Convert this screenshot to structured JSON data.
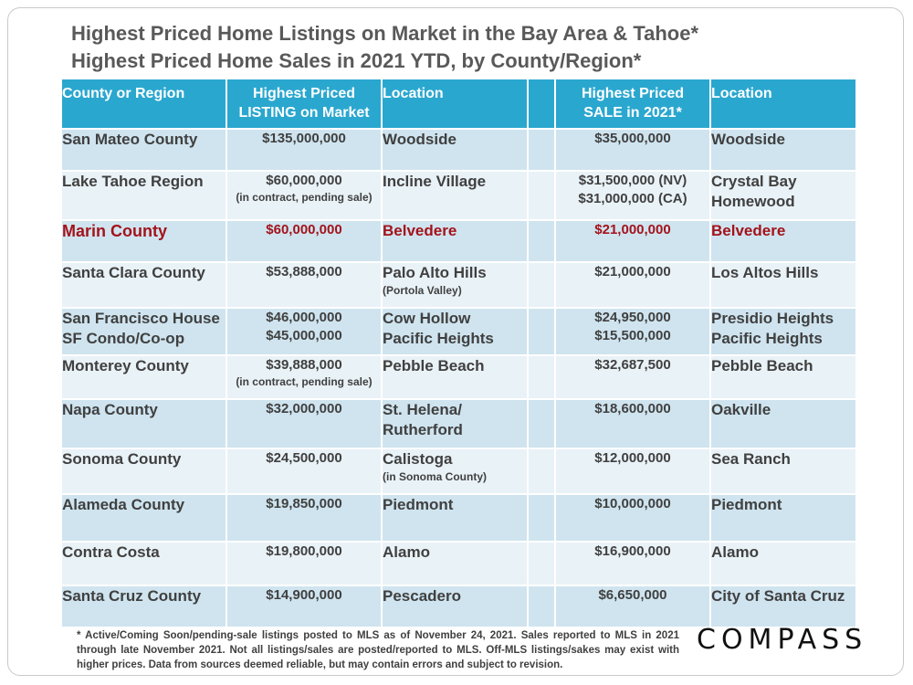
{
  "title_line1": "Highest Priced Home Listings on Market in the Bay Area & Tahoe*",
  "title_line2": "Highest Priced Home Sales in 2021 YTD, by County/Region*",
  "headers": {
    "region": "County or Region",
    "listing_1": "Highest Priced",
    "listing_2": "LISTING on Market",
    "location1": "Location",
    "blank": "",
    "sale_1": "Highest Priced",
    "sale_2": "SALE in 2021*",
    "location2": "Location"
  },
  "rows": [
    {
      "name1": "San Mateo County",
      "name2": "",
      "listing1": "$135,000,000",
      "listing2": "",
      "listing_note": "",
      "loc1": "Woodside",
      "loc1b": "",
      "loc1_note": "",
      "sale1": "$35,000,000",
      "sale2": "",
      "loc2": "Woodside",
      "loc2b": ""
    },
    {
      "name1": "Lake Tahoe Region",
      "name2": "",
      "listing1": "$60,000,000",
      "listing2": "",
      "listing_note": "(in contract, pending sale)",
      "loc1": "Incline Village",
      "loc1b": "",
      "loc1_note": "",
      "sale1": "$31,500,000 (NV)",
      "sale2": "$31,000,000 (CA)",
      "loc2": "Crystal Bay",
      "loc2b": "Homewood"
    },
    {
      "name1": "Marin County",
      "name2": "",
      "listing1": "$60,000,000",
      "listing2": "",
      "listing_note": "",
      "loc1": "Belvedere",
      "loc1b": "",
      "loc1_note": "",
      "sale1": "$21,000,000",
      "sale2": "",
      "loc2": "Belvedere",
      "loc2b": ""
    },
    {
      "name1": "Santa Clara County",
      "name2": "",
      "listing1": "$53,888,000",
      "listing2": "",
      "listing_note": "",
      "loc1": "Palo Alto Hills",
      "loc1b": "",
      "loc1_note": "(Portola Valley)",
      "sale1": "$21,000,000",
      "sale2": "",
      "loc2": "Los Altos Hills",
      "loc2b": ""
    },
    {
      "name1": "San Francisco House",
      "name2": "SF Condo/Co-op",
      "listing1": "$46,000,000",
      "listing2": "$45,000,000",
      "listing_note": "",
      "loc1": "Cow Hollow",
      "loc1b": "Pacific Heights",
      "loc1_note": "",
      "sale1": "$24,950,000",
      "sale2": "$15,500,000",
      "loc2": "Presidio Heights",
      "loc2b": "Pacific Heights"
    },
    {
      "name1": "Monterey County",
      "name2": "",
      "listing1": "$39,888,000",
      "listing2": "",
      "listing_note": "(in contract, pending sale)",
      "loc1": "Pebble Beach",
      "loc1b": "",
      "loc1_note": "",
      "sale1": "$32,687,500",
      "sale2": "",
      "loc2": "Pebble Beach",
      "loc2b": ""
    },
    {
      "name1": "Napa County",
      "name2": "",
      "listing1": "$32,000,000",
      "listing2": "",
      "listing_note": "",
      "loc1": "St. Helena/",
      "loc1b": "Rutherford",
      "loc1_note": "",
      "sale1": "$18,600,000",
      "sale2": "",
      "loc2": "Oakville",
      "loc2b": ""
    },
    {
      "name1": "Sonoma County",
      "name2": "",
      "listing1": "$24,500,000",
      "listing2": "",
      "listing_note": "",
      "loc1": "Calistoga",
      "loc1b": "",
      "loc1_note": "(in Sonoma County)",
      "sale1": "$12,000,000",
      "sale2": "",
      "loc2": "Sea Ranch",
      "loc2b": ""
    },
    {
      "name1": "Alameda County",
      "name2": "",
      "listing1": "$19,850,000",
      "listing2": "",
      "listing_note": "",
      "loc1": "Piedmont",
      "loc1b": "",
      "loc1_note": "",
      "sale1": "$10,000,000",
      "sale2": "",
      "loc2": "Piedmont",
      "loc2b": ""
    },
    {
      "name1": "Contra Costa",
      "name2": "",
      "listing1": "$19,800,000",
      "listing2": "",
      "listing_note": "",
      "loc1": "Alamo",
      "loc1b": "",
      "loc1_note": "",
      "sale1": "$16,900,000",
      "sale2": "",
      "loc2": "Alamo",
      "loc2b": ""
    },
    {
      "name1": "Santa Cruz County",
      "name2": "",
      "listing1": "$14,900,000",
      "listing2": "",
      "listing_note": "",
      "loc1": "Pescadero",
      "loc1b": "",
      "loc1_note": "",
      "sale1": "$6,650,000",
      "sale2": "",
      "loc2": "City of Santa Cruz",
      "loc2b": ""
    }
  ],
  "footnote": "* Active/Coming Soon/pending-sale listings posted to MLS as of November 24, 2021. Sales reported to MLS in 2021 through late November 2021. Not all listings/sales are posted/reported to MLS. Off-MLS listings/sakes may exist with higher prices. Data from sources deemed reliable, but may contain errors and subject to revision.",
  "logo": "COMPASS",
  "colors": {
    "header": "#2aa7cf",
    "row_odd": "#cfe4ef",
    "row_even": "#e9f2f7",
    "highlight": "#a3131b"
  }
}
